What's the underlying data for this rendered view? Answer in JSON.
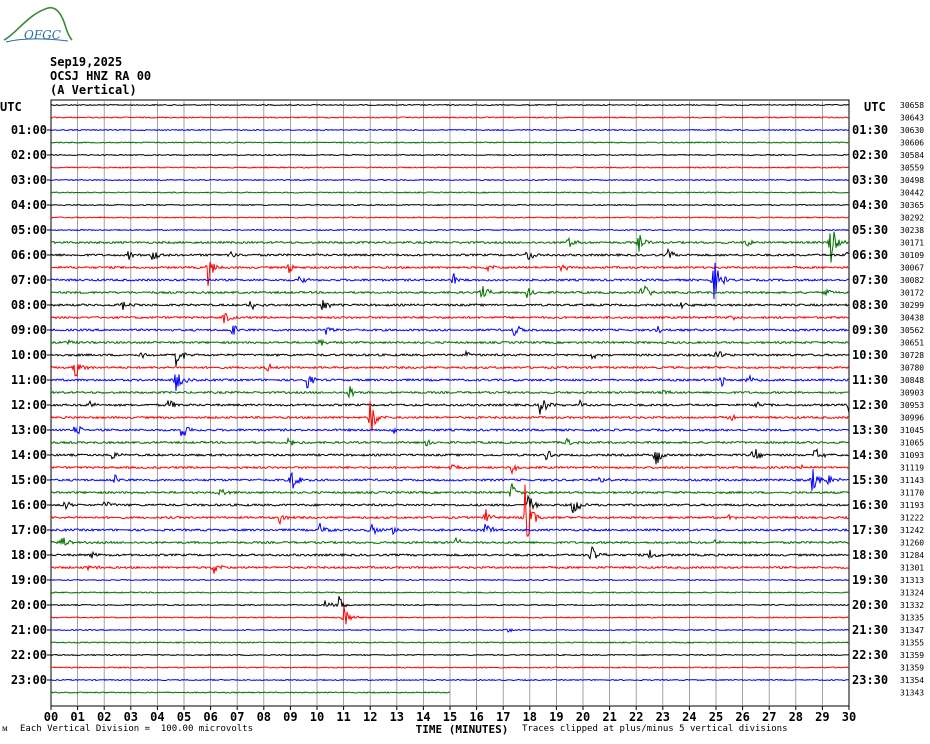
{
  "header": {
    "logo_text": "OFGC",
    "date": "Sep19,2025",
    "station": "OCSJ HNZ RA 00",
    "component": "(A Vertical)"
  },
  "chart_data": {
    "type": "line",
    "title": "",
    "xlabel": "TIME (MINUTES)",
    "ylabel": "",
    "x_range": [
      0,
      30
    ],
    "x_ticks": [
      "00",
      "01",
      "02",
      "03",
      "04",
      "05",
      "06",
      "07",
      "08",
      "09",
      "10",
      "11",
      "12",
      "13",
      "14",
      "15",
      "16",
      "17",
      "18",
      "19",
      "20",
      "21",
      "22",
      "23",
      "24",
      "25",
      "26",
      "27",
      "28",
      "29",
      "30"
    ],
    "left_axis_title": "UTC",
    "right_axis_title": "UTC",
    "left_hour_labels": [
      "01:00",
      "02:00",
      "03:00",
      "04:00",
      "05:00",
      "06:00",
      "07:00",
      "08:00",
      "09:00",
      "10:00",
      "11:00",
      "12:00",
      "13:00",
      "14:00",
      "15:00",
      "16:00",
      "17:00",
      "18:00",
      "19:00",
      "20:00",
      "21:00",
      "22:00",
      "23:00"
    ],
    "right_hour_labels": [
      "01:30",
      "02:30",
      "03:30",
      "04:30",
      "05:30",
      "06:30",
      "07:30",
      "08:30",
      "09:30",
      "10:30",
      "11:30",
      "12:30",
      "13:30",
      "14:30",
      "15:30",
      "16:30",
      "17:30",
      "18:30",
      "19:30",
      "20:30",
      "21:30",
      "22:30",
      "23:30"
    ],
    "trace_counts": [
      "30658",
      "30643",
      "30630",
      "30606",
      "30584",
      "30559",
      "30498",
      "30442",
      "30365",
      "30292",
      "30238",
      "30171",
      "30109",
      "30067",
      "30082",
      "30172",
      "30299",
      "30438",
      "30562",
      "30651",
      "30728",
      "30780",
      "30848",
      "30903",
      "30953",
      "30996",
      "31045",
      "31065",
      "31093",
      "31119",
      "31143",
      "31170",
      "31193",
      "31222",
      "31242",
      "31260",
      "31284",
      "31301",
      "31313",
      "31324",
      "31332",
      "31335",
      "31347",
      "31355",
      "31359",
      "31359",
      "31354",
      "31343"
    ],
    "trace_colors": [
      "#000000",
      "#ff0000",
      "#0000ff",
      "#007000"
    ],
    "traces_count": 48,
    "last_trace_end_minute": 15,
    "grid": true,
    "events": [
      {
        "trace": 11,
        "minute": 29.3,
        "amp": 26
      },
      {
        "trace": 11,
        "minute": 19.4,
        "amp": 9
      },
      {
        "trace": 11,
        "minute": 22.1,
        "amp": 9
      },
      {
        "trace": 11,
        "minute": 26.1,
        "amp": 6
      },
      {
        "trace": 12,
        "minute": 3.8,
        "amp": 9
      },
      {
        "trace": 12,
        "minute": 2.9,
        "amp": 6
      },
      {
        "trace": 12,
        "minute": 6.7,
        "amp": 6
      },
      {
        "trace": 12,
        "minute": 17.9,
        "amp": 8
      },
      {
        "trace": 12,
        "minute": 23.2,
        "amp": 6
      },
      {
        "trace": 12,
        "minute": 29.9,
        "amp": 4
      },
      {
        "trace": 13,
        "minute": 5.9,
        "amp": 18
      },
      {
        "trace": 13,
        "minute": 8.9,
        "amp": 8
      },
      {
        "trace": 13,
        "minute": 16.4,
        "amp": 6
      },
      {
        "trace": 13,
        "minute": 19.2,
        "amp": 5
      },
      {
        "trace": 14,
        "minute": 24.9,
        "amp": 26
      },
      {
        "trace": 14,
        "minute": 15.1,
        "amp": 10
      },
      {
        "trace": 14,
        "minute": 9.3,
        "amp": 6
      },
      {
        "trace": 15,
        "minute": 16.2,
        "amp": 10
      },
      {
        "trace": 15,
        "minute": 22.2,
        "amp": 12
      },
      {
        "trace": 15,
        "minute": 17.9,
        "amp": 7
      },
      {
        "trace": 15,
        "minute": 29.1,
        "amp": 4
      },
      {
        "trace": 16,
        "minute": 2.6,
        "amp": 9
      },
      {
        "trace": 16,
        "minute": 7.5,
        "amp": 7
      },
      {
        "trace": 16,
        "minute": 10.2,
        "amp": 8
      },
      {
        "trace": 16,
        "minute": 23.7,
        "amp": 6
      },
      {
        "trace": 17,
        "minute": 6.5,
        "amp": 7
      },
      {
        "trace": 17,
        "minute": 25.5,
        "amp": 4
      },
      {
        "trace": 18,
        "minute": 6.8,
        "amp": 7
      },
      {
        "trace": 18,
        "minute": 10.3,
        "amp": 6
      },
      {
        "trace": 18,
        "minute": 17.4,
        "amp": 9
      },
      {
        "trace": 18,
        "minute": 22.8,
        "amp": 5
      },
      {
        "trace": 19,
        "minute": 0.6,
        "amp": 5
      },
      {
        "trace": 19,
        "minute": 10.1,
        "amp": 5
      },
      {
        "trace": 20,
        "minute": 4.7,
        "amp": 14
      },
      {
        "trace": 20,
        "minute": 3.4,
        "amp": 5
      },
      {
        "trace": 20,
        "minute": 15.6,
        "amp": 5
      },
      {
        "trace": 20,
        "minute": 20.3,
        "amp": 5
      },
      {
        "trace": 20,
        "minute": 25.0,
        "amp": 8
      },
      {
        "trace": 21,
        "minute": 0.9,
        "amp": 12
      },
      {
        "trace": 21,
        "minute": 8.1,
        "amp": 5
      },
      {
        "trace": 22,
        "minute": 4.7,
        "amp": 14
      },
      {
        "trace": 22,
        "minute": 9.6,
        "amp": 10
      },
      {
        "trace": 22,
        "minute": 25.2,
        "amp": 8
      },
      {
        "trace": 22,
        "minute": 26.2,
        "amp": 6
      },
      {
        "trace": 23,
        "minute": 11.2,
        "amp": 9
      },
      {
        "trace": 23,
        "minute": 23.0,
        "amp": 5
      },
      {
        "trace": 24,
        "minute": 18.4,
        "amp": 14
      },
      {
        "trace": 24,
        "minute": 1.3,
        "amp": 8
      },
      {
        "trace": 24,
        "minute": 4.4,
        "amp": 8
      },
      {
        "trace": 24,
        "minute": 19.9,
        "amp": 6
      },
      {
        "trace": 24,
        "minute": 26.5,
        "amp": 5
      },
      {
        "trace": 24,
        "minute": 30.0,
        "amp": 8
      },
      {
        "trace": 25,
        "minute": 12.0,
        "amp": 22
      },
      {
        "trace": 25,
        "minute": 25.5,
        "amp": 4
      },
      {
        "trace": 26,
        "minute": 0.9,
        "amp": 10
      },
      {
        "trace": 26,
        "minute": 4.9,
        "amp": 10
      },
      {
        "trace": 26,
        "minute": 12.9,
        "amp": 6
      },
      {
        "trace": 27,
        "minute": 8.9,
        "amp": 8
      },
      {
        "trace": 27,
        "minute": 14.1,
        "amp": 5
      },
      {
        "trace": 27,
        "minute": 19.4,
        "amp": 6
      },
      {
        "trace": 28,
        "minute": 22.7,
        "amp": 16
      },
      {
        "trace": 28,
        "minute": 26.4,
        "amp": 12
      },
      {
        "trace": 28,
        "minute": 2.3,
        "amp": 6
      },
      {
        "trace": 28,
        "minute": 18.6,
        "amp": 7
      },
      {
        "trace": 28,
        "minute": 28.7,
        "amp": 8
      },
      {
        "trace": 29,
        "minute": 17.3,
        "amp": 8
      },
      {
        "trace": 29,
        "minute": 28.2,
        "amp": 5
      },
      {
        "trace": 29,
        "minute": 15.0,
        "amp": 6
      },
      {
        "trace": 30,
        "minute": 9.0,
        "amp": 18
      },
      {
        "trace": 30,
        "minute": 28.6,
        "amp": 14
      },
      {
        "trace": 30,
        "minute": 29.2,
        "amp": 8
      },
      {
        "trace": 30,
        "minute": 2.4,
        "amp": 5
      },
      {
        "trace": 30,
        "minute": 20.6,
        "amp": 5
      },
      {
        "trace": 31,
        "minute": 17.3,
        "amp": 12
      },
      {
        "trace": 31,
        "minute": 6.3,
        "amp": 6
      },
      {
        "trace": 32,
        "minute": 17.9,
        "amp": 14
      },
      {
        "trace": 32,
        "minute": 19.6,
        "amp": 14
      },
      {
        "trace": 32,
        "minute": 0.5,
        "amp": 6
      },
      {
        "trace": 32,
        "minute": 2.0,
        "amp": 5
      },
      {
        "trace": 33,
        "minute": 17.8,
        "amp": 38
      },
      {
        "trace": 33,
        "minute": 16.3,
        "amp": 10
      },
      {
        "trace": 33,
        "minute": 8.6,
        "amp": 8
      },
      {
        "trace": 33,
        "minute": 25.5,
        "amp": 6
      },
      {
        "trace": 34,
        "minute": 12.0,
        "amp": 10
      },
      {
        "trace": 34,
        "minute": 16.3,
        "amp": 10
      },
      {
        "trace": 34,
        "minute": 10.1,
        "amp": 8
      },
      {
        "trace": 34,
        "minute": 12.8,
        "amp": 7
      },
      {
        "trace": 35,
        "minute": 0.4,
        "amp": 9
      },
      {
        "trace": 35,
        "minute": 15.2,
        "amp": 6
      },
      {
        "trace": 35,
        "minute": 24.8,
        "amp": 5
      },
      {
        "trace": 36,
        "minute": 20.3,
        "amp": 14
      },
      {
        "trace": 36,
        "minute": 22.5,
        "amp": 8
      },
      {
        "trace": 36,
        "minute": 1.5,
        "amp": 5
      },
      {
        "trace": 37,
        "minute": 6.1,
        "amp": 10
      },
      {
        "trace": 37,
        "minute": 1.4,
        "amp": 5
      },
      {
        "trace": 40,
        "minute": 10.8,
        "amp": 10
      },
      {
        "trace": 40,
        "minute": 10.3,
        "amp": 6
      },
      {
        "trace": 41,
        "minute": 11.0,
        "amp": 14
      },
      {
        "trace": 42,
        "minute": 17.1,
        "amp": 6
      }
    ]
  },
  "footer": {
    "left_note": "Each Vertical Division =  100.00 microvolts",
    "right_note": "Traces clipped at plus/minus 5 vertical divisions"
  }
}
